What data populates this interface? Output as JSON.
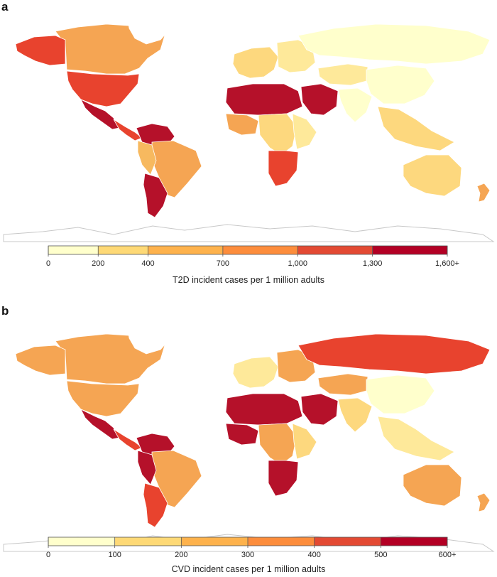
{
  "panels": [
    {
      "label": "a",
      "legend_title": "T2D incident cases per 1 million adults",
      "ticks": [
        "0",
        "200",
        "400",
        "700",
        "1,000",
        "1,300",
        "1,600+"
      ],
      "tick_values": [
        0,
        200,
        400,
        700,
        1000,
        1300,
        1600
      ],
      "colors": [
        "#ffffcc",
        "#fed976",
        "#feb24c",
        "#fd8d3c",
        "#e34a33",
        "#b30024"
      ],
      "regions": {
        "north-america-north": "#f5a553",
        "alaska": "#e8432e",
        "greenland": "#ffffff",
        "usa": "#e8432e",
        "mexico": "#b5112a",
        "central-america": "#e8432e",
        "south-america-north": "#b5112a",
        "brazil": "#f5a553",
        "south-america-west": "#f7b95f",
        "argentina-chile": "#b5112a",
        "europe-west": "#fdd87e",
        "europe-east": "#fee99a",
        "russia": "#ffffcc",
        "north-africa": "#b5112a",
        "west-africa": "#f5a553",
        "central-africa": "#fdd87e",
        "east-africa": "#fee99a",
        "southern-africa": "#e8432e",
        "middle-east": "#b5112a",
        "central-asia": "#fee99a",
        "south-asia": "#ffffcc",
        "china": "#ffffcc",
        "southeast-asia": "#fdd87e",
        "australia": "#fdd87e",
        "new-zealand": "#f5a553"
      }
    },
    {
      "label": "b",
      "legend_title": "CVD incident cases per 1 million adults",
      "ticks": [
        "0",
        "100",
        "200",
        "300",
        "400",
        "500",
        "600+"
      ],
      "tick_values": [
        0,
        100,
        200,
        300,
        400,
        500,
        600
      ],
      "colors": [
        "#ffffcc",
        "#fed976",
        "#feb24c",
        "#fd8d3c",
        "#e34a33",
        "#b30024"
      ],
      "regions": {
        "north-america-north": "#f5a553",
        "alaska": "#f5a553",
        "greenland": "#ffffff",
        "usa": "#f5a553",
        "mexico": "#b5112a",
        "central-america": "#e8432e",
        "south-america-north": "#b5112a",
        "brazil": "#f5a553",
        "south-america-west": "#b5112a",
        "argentina-chile": "#e8432e",
        "europe-west": "#fee99a",
        "europe-east": "#f5a553",
        "russia": "#e8432e",
        "north-africa": "#b5112a",
        "west-africa": "#b5112a",
        "central-africa": "#f5a553",
        "east-africa": "#fdd87e",
        "southern-africa": "#b5112a",
        "middle-east": "#b5112a",
        "central-asia": "#f5a553",
        "south-asia": "#fdd87e",
        "china": "#ffffcc",
        "southeast-asia": "#fee99a",
        "australia": "#f5a553",
        "new-zealand": "#f5a553"
      }
    }
  ]
}
